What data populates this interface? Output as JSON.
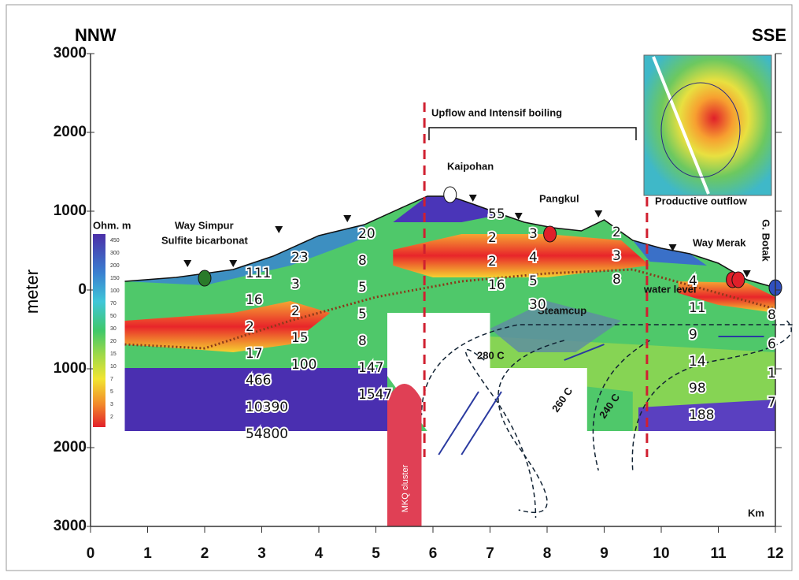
{
  "header": {
    "left": "NNW",
    "right": "SSE"
  },
  "axes": {
    "y_title": "meter",
    "x_title": "Km",
    "y_labels": [
      3000,
      2000,
      1000,
      0,
      1000,
      2000,
      3000
    ],
    "x_labels": [
      0,
      1,
      2,
      3,
      4,
      5,
      6,
      7,
      8,
      9,
      10,
      11,
      12
    ]
  },
  "legend": {
    "title": "Ohm. m",
    "labels": [
      450,
      300,
      200,
      150,
      100,
      70,
      50,
      30,
      20,
      15,
      10,
      7,
      5,
      3,
      2
    ]
  },
  "annotations": {
    "upflow": "Upflow and Intensif boiling",
    "kaipohan": "Kaipohan",
    "pangkul": "Pangkul",
    "productive_outflow": "Productive outflow",
    "way_simpur": "Way Simpur",
    "sulfite": "Sulfite bicarbonat",
    "way_merak": "Way Merak",
    "g_botak": "G. Botak",
    "steamcup": "Steamcup",
    "water_level": "water level",
    "mkq": "MKQ cluster",
    "t280": "280 C",
    "t260": "260 C",
    "t240": "240 C"
  },
  "resistivity_columns": [
    [
      111,
      16,
      2,
      17,
      466,
      10390,
      54800
    ],
    [
      23,
      3,
      2,
      15,
      100
    ],
    [
      20,
      8,
      5,
      5,
      8,
      147,
      1547
    ],
    [
      55,
      2,
      2,
      16
    ],
    [
      3,
      4,
      5,
      30
    ],
    [
      2,
      3,
      8
    ],
    [
      4,
      11,
      9,
      14,
      98,
      188
    ],
    [
      8,
      6,
      1,
      7
    ]
  ]
}
